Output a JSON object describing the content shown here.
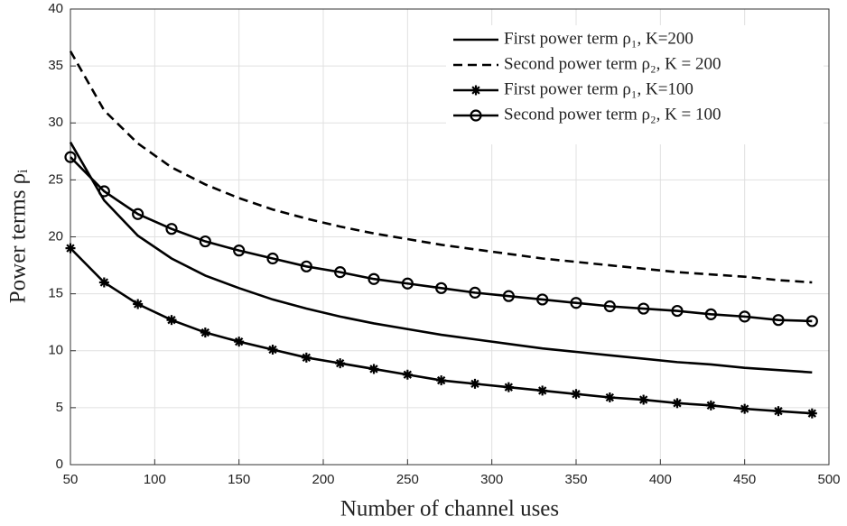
{
  "chart_data": {
    "type": "line",
    "xlabel": "Number of channel uses",
    "ylabel": "Power terms ρᵢ",
    "x": [
      50,
      70,
      90,
      110,
      130,
      150,
      170,
      190,
      210,
      230,
      250,
      270,
      290,
      310,
      330,
      350,
      370,
      390,
      410,
      430,
      450,
      470,
      490
    ],
    "series": [
      {
        "name": "First power term ρ₁, K=200",
        "color": "#000000",
        "dash": false,
        "marker": "none",
        "values": [
          28.3,
          23.2,
          20.1,
          18.1,
          16.6,
          15.5,
          14.5,
          13.7,
          13.0,
          12.4,
          11.9,
          11.4,
          11.0,
          10.6,
          10.2,
          9.9,
          9.6,
          9.3,
          9.0,
          8.8,
          8.5,
          8.3,
          8.1
        ]
      },
      {
        "name": "Second power term ρ₂, K = 200",
        "color": "#000000",
        "dash": true,
        "marker": "none",
        "values": [
          36.3,
          31.1,
          28.2,
          26.1,
          24.6,
          23.4,
          22.4,
          21.6,
          20.9,
          20.3,
          19.8,
          19.3,
          18.9,
          18.5,
          18.1,
          17.8,
          17.5,
          17.2,
          16.9,
          16.7,
          16.5,
          16.2,
          16.0
        ]
      },
      {
        "name": "First power term ρ₁, K=100",
        "color": "#000000",
        "dash": false,
        "marker": "star",
        "values": [
          19,
          16,
          14.1,
          12.7,
          11.6,
          10.8,
          10.1,
          9.4,
          8.9,
          8.4,
          7.9,
          7.4,
          7.1,
          6.8,
          6.5,
          6.2,
          5.9,
          5.7,
          5.4,
          5.2,
          4.9,
          4.7,
          4.5
        ]
      },
      {
        "name": "Second power term ρ₂, K = 100",
        "color": "#000000",
        "dash": false,
        "marker": "circle",
        "values": [
          27,
          24,
          22,
          20.7,
          19.6,
          18.8,
          18.1,
          17.4,
          16.9,
          16.3,
          15.9,
          15.5,
          15.1,
          14.8,
          14.5,
          14.2,
          13.9,
          13.7,
          13.5,
          13.2,
          13,
          12.7,
          12.6
        ]
      }
    ],
    "xlim": [
      50,
      500
    ],
    "xticks": [
      50,
      100,
      150,
      200,
      250,
      300,
      350,
      400,
      450,
      500
    ],
    "ylim": [
      0,
      40
    ],
    "yticks": [
      0,
      5,
      10,
      15,
      20,
      25,
      30,
      35,
      40
    ],
    "grid": true,
    "legend": "top-right"
  }
}
